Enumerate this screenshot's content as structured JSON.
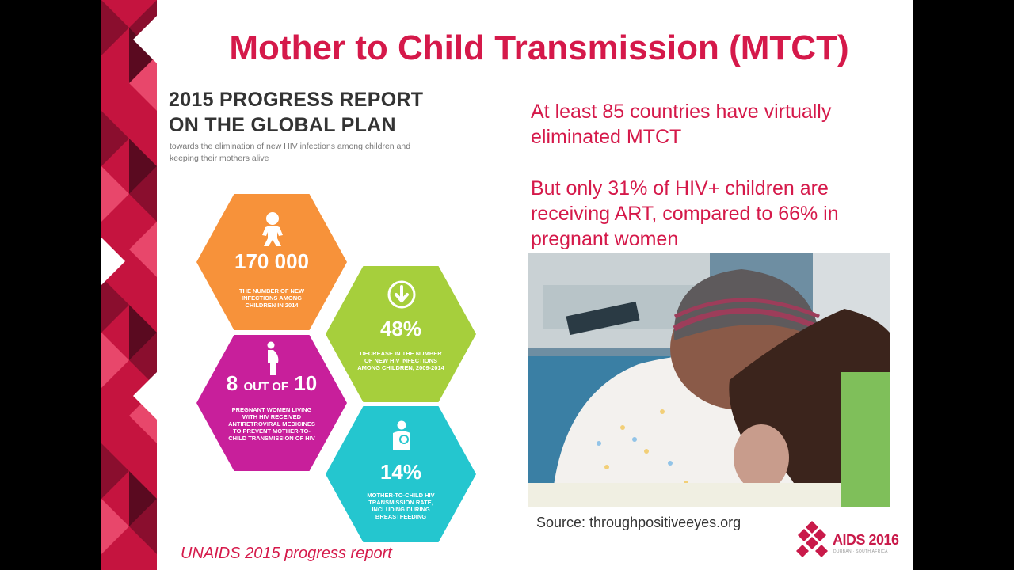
{
  "slide": {
    "title": "Mother to Child Transmission (MTCT)",
    "report": {
      "title_line1": "2015 PROGRESS REPORT",
      "title_line2": "ON THE GLOBAL PLAN",
      "subtitle": "towards the elimination of new HIV infections among children and keeping their mothers alive"
    },
    "hexagons": [
      {
        "icon": "baby-icon",
        "value": "170 000",
        "caption": "The number of new infections among children in 2014",
        "color": "#f7923a"
      },
      {
        "icon": "down-arrow-icon",
        "value": "48%",
        "caption": "Decrease in the number of new HIV infections among children, 2009-2014",
        "color": "#a6cf3c"
      },
      {
        "icon": "pregnant-woman-icon",
        "value_big1": "8",
        "value_small": "OUT OF",
        "value_big2": "10",
        "caption": "Pregnant women living with HIV received antiretroviral medicines to prevent mother-to-child transmission of HIV",
        "color": "#c81f9b"
      },
      {
        "icon": "mother-child-icon",
        "value": "14%",
        "caption": "Mother-to-child HIV transmission rate, including during breastfeeding",
        "color": "#24c6cf"
      }
    ],
    "report_source": "UNAIDS 2015 progress report",
    "stat1": "At least 85 countries have virtually eliminated MTCT",
    "stat2": "But only 31% of HIV+ children are receiving ART, compared to 66% in pregnant women",
    "photo_caption": "Source: throughpositiveeyes.org",
    "logo": {
      "text": "AIDS 2016",
      "sub": "DURBAN · SOUTH AFRICA"
    },
    "accent_color": "#d5194a"
  }
}
